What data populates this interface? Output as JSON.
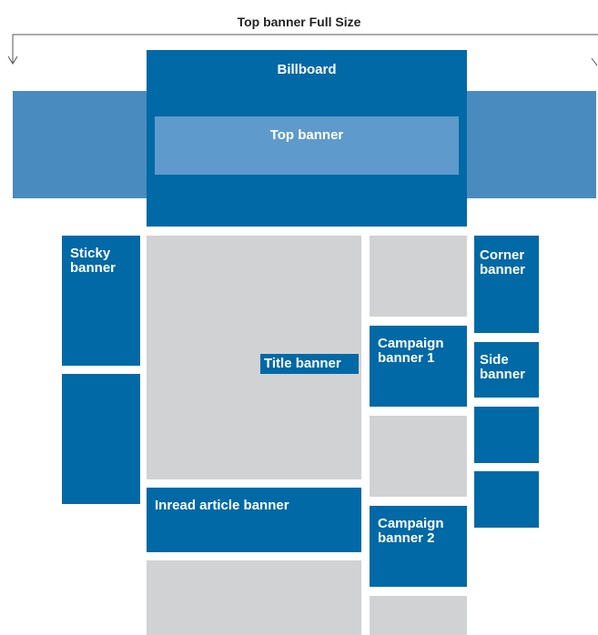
{
  "title": "Top banner Full Size",
  "banners": {
    "billboard": "Billboard",
    "top_banner": "Top banner",
    "sticky_banner": "Sticky banner",
    "title_banner": "Title banner",
    "campaign_banner_1": "Campaign banner 1",
    "campaign_banner_2": "Campaign banner 2",
    "corner_banner": "Corner banner",
    "side_banner": "Side banner",
    "inread_article_banner": "Inread article banner"
  }
}
